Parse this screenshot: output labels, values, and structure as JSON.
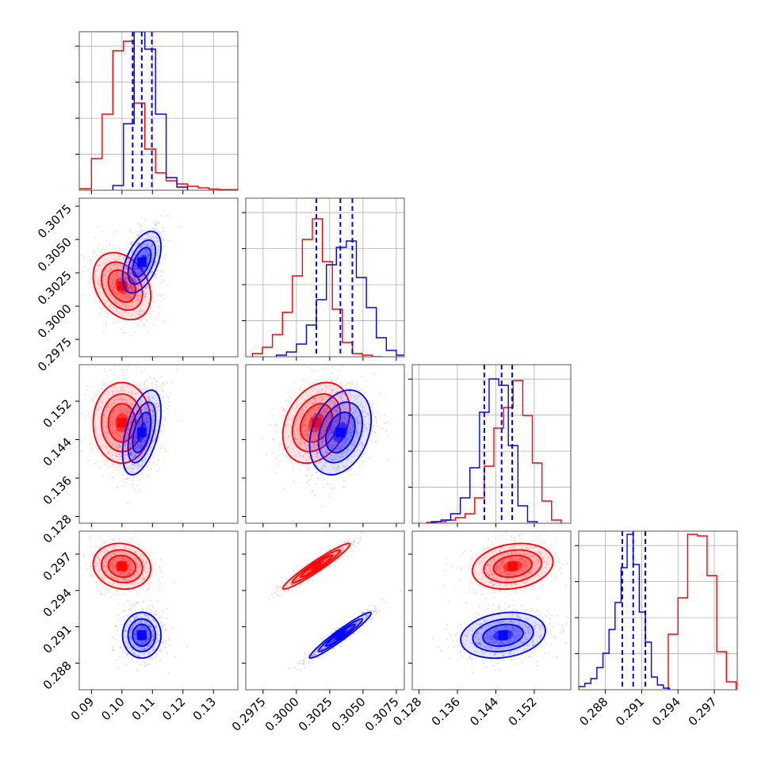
{
  "chart_data": {
    "type": "corner",
    "colors": {
      "red": "#ff0000",
      "blue": "#0000ff"
    },
    "params": [
      {
        "ticks": [
          0.09,
          0.1,
          0.11,
          0.12,
          0.13
        ],
        "tick_labels": [
          "0.09",
          "0.10",
          "0.11",
          "0.12",
          "0.13"
        ],
        "range": [
          0.086,
          0.138
        ]
      },
      {
        "ticks": [
          0.2975,
          0.3,
          0.3025,
          0.305,
          0.3075
        ],
        "tick_labels": [
          "0.2975",
          "0.3000",
          "0.3025",
          "0.3050",
          "0.3075"
        ],
        "range": [
          0.2962,
          0.3081
        ]
      },
      {
        "ticks": [
          0.128,
          0.136,
          0.144,
          0.152
        ],
        "tick_labels": [
          "0.128",
          "0.136",
          "0.144",
          "0.152"
        ],
        "range": [
          0.1266,
          0.1596
        ]
      },
      {
        "ticks": [
          0.288,
          0.291,
          0.294,
          0.297
        ],
        "tick_labels": [
          "0.288",
          "0.291",
          "0.294",
          "0.297"
        ],
        "range": [
          0.2858,
          0.2989
        ]
      }
    ],
    "series": [
      {
        "color": "red",
        "means": [
          0.1,
          0.3015,
          0.1475,
          0.296
        ],
        "sds": [
          0.0045,
          0.0012,
          0.004,
          0.0009
        ],
        "corr": [
          [
            0,
            1,
            -0.3
          ],
          [
            0,
            2,
            0.0
          ],
          [
            0,
            3,
            -0.1
          ],
          [
            1,
            2,
            0.3
          ],
          [
            1,
            3,
            0.96
          ],
          [
            2,
            3,
            0.2
          ]
        ],
        "hist": [
          {
            "edges": [
              0.086,
              0.09,
              0.0935,
              0.097,
              0.1005,
              0.104,
              0.1075,
              0.111,
              0.1145,
              0.118,
              0.1215,
              0.125,
              0.1285,
              0.132,
              0.138
            ],
            "counts": [
              0.01,
              0.2,
              0.48,
              0.88,
              0.94,
              0.55,
              0.26,
              0.11,
              0.06,
              0.04,
              0.025,
              0.015,
              0.008,
              0.004
            ]
          },
          {
            "edges": [
              0.2967,
              0.29745,
              0.2982,
              0.29895,
              0.2997,
              0.30045,
              0.3012,
              0.30195,
              0.3027,
              0.30345,
              0.3042,
              0.30495,
              0.3057,
              0.30645
            ],
            "counts": [
              0.02,
              0.06,
              0.14,
              0.28,
              0.51,
              0.74,
              0.87,
              0.6,
              0.3,
              0.09,
              0.02,
              0.01,
              0.0
            ]
          },
          {
            "edges": [
              0.1296,
              0.1316,
              0.1336,
              0.1356,
              0.1376,
              0.1396,
              0.1416,
              0.1436,
              0.1456,
              0.1476,
              0.1496,
              0.1516,
              0.1536,
              0.1556,
              0.1576
            ],
            "counts": [
              0.005,
              0.01,
              0.02,
              0.035,
              0.06,
              0.16,
              0.36,
              0.6,
              0.73,
              0.9,
              0.68,
              0.38,
              0.14,
              0.02
            ]
          },
          {
            "edges": [
              0.2932,
              0.294,
              0.2948,
              0.2956,
              0.2964,
              0.2972,
              0.298,
              0.2988
            ],
            "counts": [
              0.35,
              0.58,
              0.98,
              0.97,
              0.72,
              0.24,
              0.05
            ]
          }
        ]
      },
      {
        "color": "blue",
        "means": [
          0.1065,
          0.3033,
          0.1455,
          0.2903
        ],
        "sds": [
          0.003,
          0.0011,
          0.0042,
          0.0009
        ],
        "corr": [
          [
            0,
            1,
            0.5
          ],
          [
            0,
            2,
            0.5
          ],
          [
            0,
            3,
            0.0
          ],
          [
            1,
            2,
            0.3
          ],
          [
            1,
            3,
            0.96
          ],
          [
            2,
            3,
            0.2
          ]
        ],
        "quantiles": [
          [
            0.1035,
            0.1065,
            0.1098
          ],
          [
            0.3015,
            0.3033,
            0.3042
          ],
          [
            0.1416,
            0.1452,
            0.1474
          ],
          [
            0.2894,
            0.2903,
            0.2913
          ]
        ],
        "hist": [
          {
            "edges": [
              0.097,
              0.1005,
              0.104,
              0.1075,
              0.111,
              0.1145,
              0.118,
              0.1215
            ],
            "counts": [
              0.03,
              0.42,
              1.0,
              0.89,
              0.48,
              0.08,
              0.02
            ]
          },
          {
            "edges": [
              0.2985,
              0.29925,
              0.3,
              0.30075,
              0.3015,
              0.30225,
              0.303,
              0.30375,
              0.3045,
              0.30525,
              0.306,
              0.30675,
              0.3075,
              0.30825
            ],
            "counts": [
              0.01,
              0.03,
              0.08,
              0.2,
              0.36,
              0.58,
              0.69,
              0.73,
              0.5,
              0.31,
              0.12,
              0.04,
              0.01
            ]
          },
          {
            "edges": [
              0.1306,
              0.1326,
              0.1346,
              0.1366,
              0.1386,
              0.1406,
              0.1426,
              0.1446,
              0.1466,
              0.1486,
              0.1506,
              0.1526
            ],
            "counts": [
              0.01,
              0.02,
              0.06,
              0.16,
              0.35,
              0.7,
              0.91,
              0.87,
              0.49,
              0.11,
              0.01
            ]
          },
          {
            "edges": [
              0.2858,
              0.2863,
              0.2868,
              0.2873,
              0.2878,
              0.2883,
              0.2888,
              0.2893,
              0.2898,
              0.2903,
              0.2908,
              0.2913,
              0.2918,
              0.2923,
              0.2928,
              0.2933
            ],
            "counts": [
              0.02,
              0.04,
              0.07,
              0.14,
              0.23,
              0.38,
              0.55,
              0.77,
              0.98,
              0.79,
              0.49,
              0.3,
              0.08,
              0.03,
              0.01
            ]
          }
        ]
      }
    ],
    "grid": true,
    "title": "",
    "xlabel": "",
    "ylabel": ""
  }
}
